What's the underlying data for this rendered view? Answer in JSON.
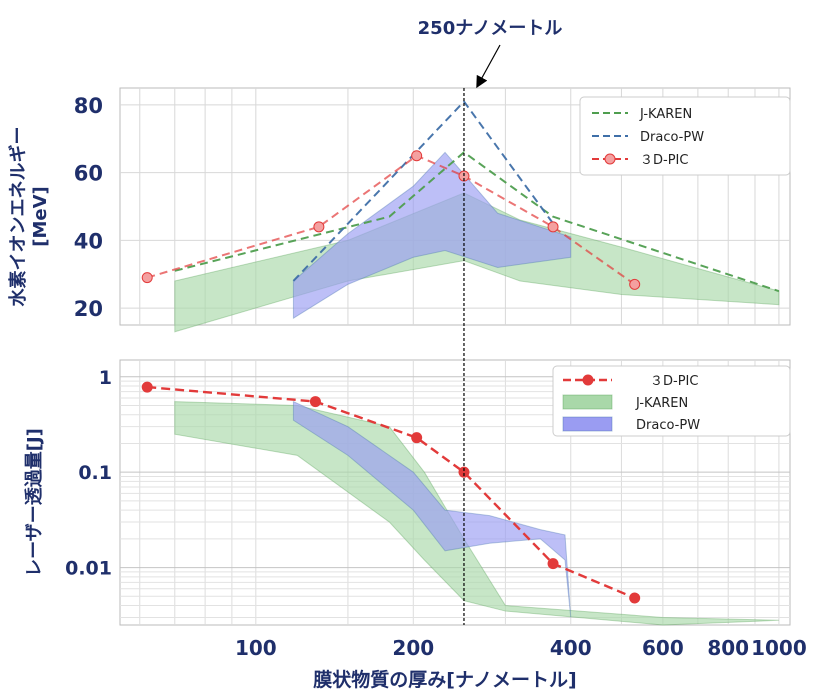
{
  "annotation": "250ナノメートル",
  "xlabel": "膜状物質の厚み[ナノメートル]",
  "x_ticks": [
    "100",
    "200",
    "400",
    "600",
    "800",
    "1000"
  ],
  "colors": {
    "jkaren": "#4f9e4f",
    "jkaren_fill": "#a9d8a9",
    "draco": "#3f6fa8",
    "draco_fill": "#9a9cf2",
    "pic": "#e23a3a",
    "axis_text": "#1f2f6b"
  },
  "chart_data": [
    {
      "type": "line",
      "ylabel": "水素イオンエネルギー\n[MeV]",
      "y_ticks": [
        "20",
        "40",
        "60",
        "80"
      ],
      "ylim": [
        15,
        85
      ],
      "xlim": [
        55,
        1050
      ],
      "xscale": "log",
      "grid": true,
      "legend_position": "top-right",
      "series": [
        {
          "name": "J-KAREN",
          "style": "dashed",
          "x": [
            70,
            180,
            250,
            370,
            1000
          ],
          "y": [
            31,
            47,
            66,
            47,
            25
          ]
        },
        {
          "name": "Draco-PW",
          "style": "dashed",
          "x": [
            118,
            250,
            370
          ],
          "y": [
            28,
            81,
            45
          ]
        },
        {
          "name": "３D-PIC",
          "style": "dashed-marker",
          "x": [
            62,
            132,
            203,
            250,
            370,
            530
          ],
          "y": [
            29,
            44,
            65,
            59,
            44,
            27
          ]
        }
      ],
      "bands": [
        {
          "series": "J-KAREN",
          "x": [
            70,
            150,
            250,
            320,
            500,
            1000
          ],
          "upper": [
            28,
            40,
            54,
            46,
            38,
            25
          ],
          "lower": [
            13,
            28,
            34,
            28,
            24,
            21
          ]
        },
        {
          "series": "Draco-PW",
          "x": [
            118,
            150,
            200,
            230,
            290,
            400
          ],
          "upper": [
            28,
            42,
            56,
            66,
            48,
            41
          ],
          "lower": [
            17,
            27,
            35,
            37,
            32,
            35
          ]
        }
      ]
    },
    {
      "type": "line",
      "ylabel": "レーザー透過量[J]",
      "y_ticks": [
        "1",
        "0.1",
        "0.01"
      ],
      "ylim": [
        0.0025,
        1.5
      ],
      "xlim": [
        55,
        1050
      ],
      "xscale": "log",
      "yscale": "log",
      "grid": true,
      "legend_position": "top-right",
      "series": [
        {
          "name": "３D-PIC",
          "style": "dashed-marker",
          "x": [
            62,
            130,
            203,
            250,
            370,
            530
          ],
          "y": [
            0.78,
            0.55,
            0.23,
            0.1,
            0.011,
            0.0048
          ]
        }
      ],
      "bands": [
        {
          "series": "J-KAREN",
          "x": [
            70,
            120,
            180,
            210,
            250,
            300,
            600,
            1000
          ],
          "upper": [
            0.55,
            0.5,
            0.3,
            0.1,
            0.02,
            0.004,
            0.003,
            0.0028
          ],
          "lower": [
            0.25,
            0.15,
            0.03,
            0.012,
            0.0045,
            0.0035,
            0.0025,
            0.0028
          ]
        },
        {
          "series": "Draco-PW",
          "x": [
            118,
            150,
            200,
            230,
            280,
            350,
            390,
            400
          ],
          "upper": [
            0.55,
            0.3,
            0.1,
            0.04,
            0.035,
            0.025,
            0.022,
            0.003
          ],
          "lower": [
            0.35,
            0.15,
            0.04,
            0.015,
            0.018,
            0.02,
            0.012,
            0.003
          ]
        }
      ]
    }
  ],
  "legends": [
    {
      "entries": [
        "J-KAREN",
        "Draco-PW",
        "３D-PIC"
      ]
    },
    {
      "entries": [
        "３D-PIC",
        "J-KAREN",
        "Draco-PW"
      ]
    }
  ]
}
